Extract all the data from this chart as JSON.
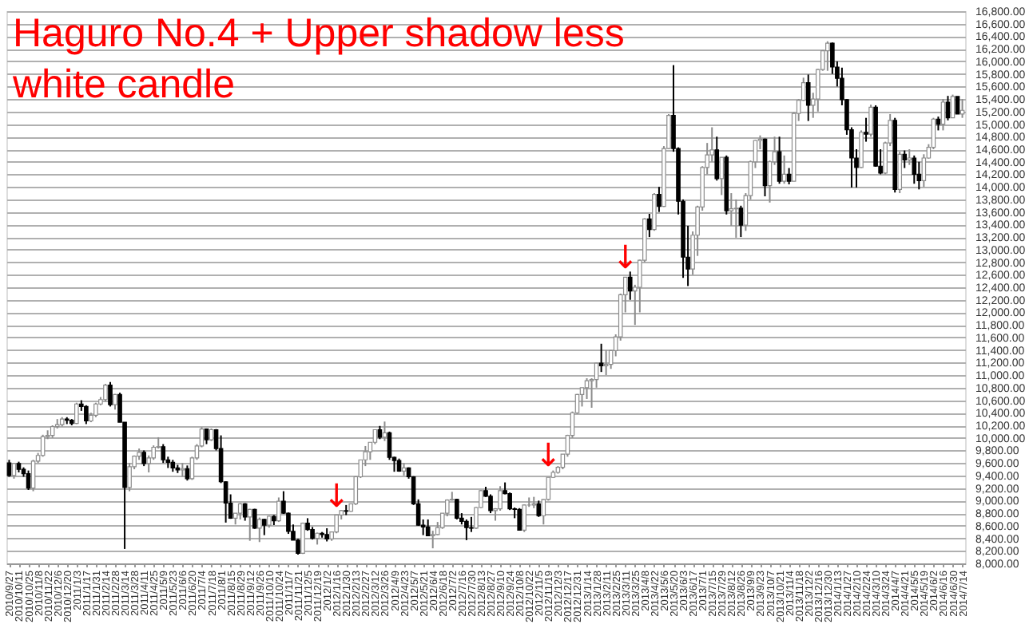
{
  "chart_data": {
    "type": "candlestick",
    "title": "Haguro No.4 + Upper shadow less white candle",
    "x": [
      "2010-09-27",
      "2010-10-04",
      "2010-10-11",
      "2010-10-18",
      "2010-10-25",
      "2010-11-01",
      "2010-11-08",
      "2010-11-15",
      "2010-11-22",
      "2010-11-29",
      "2010-12-06",
      "2010-12-13",
      "2010-12-20",
      "2010-12-27",
      "2011-01-03",
      "2011-01-10",
      "2011-01-17",
      "2011-01-24",
      "2011-01-31",
      "2011-02-07",
      "2011-02-14",
      "2011-02-21",
      "2011-02-28",
      "2011-03-07",
      "2011-03-14",
      "2011-03-21",
      "2011-03-28",
      "2011-04-04",
      "2011-04-11",
      "2011-04-18",
      "2011-04-25",
      "2011-05-02",
      "2011-05-09",
      "2011-05-16",
      "2011-05-23",
      "2011-05-30",
      "2011-06-06",
      "2011-06-13",
      "2011-06-20",
      "2011-06-27",
      "2011-07-04",
      "2011-07-11",
      "2011-07-18",
      "2011-07-25",
      "2011-08-01",
      "2011-08-08",
      "2011-08-15",
      "2011-08-22",
      "2011-08-29",
      "2011-09-05",
      "2011-09-12",
      "2011-09-19",
      "2011-09-26",
      "2011-10-03",
      "2011-10-10",
      "2011-10-17",
      "2011-10-24",
      "2011-10-31",
      "2011-11-07",
      "2011-11-14",
      "2011-11-21",
      "2011-11-28",
      "2011-12-05",
      "2011-12-12",
      "2011-12-19",
      "2011-12-26",
      "2012-01-02",
      "2012-01-09",
      "2012-01-16",
      "2012-01-23",
      "2012-01-30",
      "2012-02-06",
      "2012-02-13",
      "2012-02-20",
      "2012-02-27",
      "2012-03-05",
      "2012-03-12",
      "2012-03-19",
      "2012-03-26",
      "2012-04-02",
      "2012-04-09",
      "2012-04-16",
      "2012-04-23",
      "2012-04-30",
      "2012-05-07",
      "2012-05-14",
      "2012-05-21",
      "2012-05-28",
      "2012-06-04",
      "2012-06-11",
      "2012-06-18",
      "2012-06-25",
      "2012-07-02",
      "2012-07-09",
      "2012-07-16",
      "2012-07-23",
      "2012-07-30",
      "2012-08-06",
      "2012-08-13",
      "2012-08-20",
      "2012-08-27",
      "2012-09-03",
      "2012-09-10",
      "2012-09-17",
      "2012-09-24",
      "2012-10-01",
      "2012-10-08",
      "2012-10-15",
      "2012-10-22",
      "2012-10-29",
      "2012-11-05",
      "2012-11-12",
      "2012-11-19",
      "2012-11-26",
      "2012-12-03",
      "2012-12-10",
      "2012-12-17",
      "2012-12-24",
      "2012-12-31",
      "2013-01-07",
      "2013-01-14",
      "2013-01-21",
      "2013-01-28",
      "2013-02-04",
      "2013-02-11",
      "2013-02-18",
      "2013-02-25",
      "2013-03-04",
      "2013-03-11",
      "2013-03-18",
      "2013-03-25",
      "2013-04-01",
      "2013-04-08",
      "2013-04-15",
      "2013-04-22",
      "2013-04-29",
      "2013-05-06",
      "2013-05-13",
      "2013-05-20",
      "2013-05-27",
      "2013-06-03",
      "2013-06-10",
      "2013-06-17",
      "2013-06-24",
      "2013-07-01",
      "2013-07-08",
      "2013-07-15",
      "2013-07-22",
      "2013-07-29",
      "2013-08-05",
      "2013-08-12",
      "2013-08-19",
      "2013-08-26",
      "2013-09-02",
      "2013-09-09",
      "2013-09-16",
      "2013-09-23",
      "2013-09-30",
      "2013-10-07",
      "2013-10-14",
      "2013-10-21",
      "2013-10-28",
      "2013-11-04",
      "2013-11-11",
      "2013-11-18",
      "2013-11-25",
      "2013-12-02",
      "2013-12-09",
      "2013-12-16",
      "2013-12-23",
      "2013-12-30",
      "2014-01-06",
      "2014-01-13",
      "2014-01-20",
      "2014-01-27",
      "2014-02-03",
      "2014-02-10",
      "2014-02-17",
      "2014-02-24",
      "2014-03-03",
      "2014-03-10",
      "2014-03-17",
      "2014-03-24",
      "2014-03-31",
      "2014-04-07",
      "2014-04-14",
      "2014-04-21",
      "2014-04-28",
      "2014-05-05",
      "2014-05-12",
      "2014-05-19",
      "2014-05-26",
      "2014-06-02",
      "2014-06-09",
      "2014-06-16",
      "2014-06-23",
      "2014-06-30",
      "2014-07-07",
      "2014-07-14"
    ],
    "ohlc": [
      [
        9600,
        9650,
        9380,
        9400
      ],
      [
        9400,
        9600,
        9350,
        9590
      ],
      [
        9590,
        9620,
        9450,
        9500
      ],
      [
        9500,
        9530,
        9380,
        9430
      ],
      [
        9430,
        9480,
        9170,
        9200
      ],
      [
        9200,
        9650,
        9150,
        9630
      ],
      [
        9630,
        9760,
        9600,
        9720
      ],
      [
        9720,
        10050,
        9700,
        10020
      ],
      [
        10020,
        10120,
        9980,
        10040
      ],
      [
        10040,
        10200,
        10000,
        10180
      ],
      [
        10180,
        10300,
        10150,
        10210
      ],
      [
        10210,
        10330,
        10180,
        10300
      ],
      [
        10300,
        10330,
        10220,
        10280
      ],
      [
        10280,
        10300,
        10200,
        10230
      ],
      [
        10230,
        10560,
        10220,
        10540
      ],
      [
        10540,
        10600,
        10430,
        10500
      ],
      [
        10500,
        10520,
        10220,
        10270
      ],
      [
        10270,
        10400,
        10250,
        10360
      ],
      [
        10360,
        10560,
        10330,
        10540
      ],
      [
        10540,
        10650,
        10520,
        10610
      ],
      [
        10610,
        10860,
        10580,
        10840
      ],
      [
        10840,
        10890,
        10500,
        10530
      ],
      [
        10530,
        10700,
        10450,
        10690
      ],
      [
        10690,
        10720,
        10250,
        10250
      ],
      [
        10250,
        10250,
        8230,
        9210
      ],
      [
        9210,
        9600,
        9150,
        9540
      ],
      [
        9540,
        9720,
        9500,
        9710
      ],
      [
        9710,
        9830,
        9650,
        9770
      ],
      [
        9770,
        9800,
        9550,
        9590
      ],
      [
        9590,
        9720,
        9450,
        9680
      ],
      [
        9680,
        9880,
        9650,
        9850
      ],
      [
        9850,
        10010,
        9830,
        9860
      ],
      [
        9860,
        9900,
        9600,
        9650
      ],
      [
        9650,
        9700,
        9520,
        9610
      ],
      [
        9610,
        9650,
        9460,
        9520
      ],
      [
        9520,
        9570,
        9440,
        9490
      ],
      [
        9490,
        9600,
        9380,
        9510
      ],
      [
        9510,
        9560,
        9320,
        9350
      ],
      [
        9350,
        9700,
        9330,
        9680
      ],
      [
        9680,
        9900,
        9650,
        9870
      ],
      [
        9870,
        10170,
        9850,
        10140
      ],
      [
        10140,
        10150,
        9900,
        9970
      ],
      [
        9970,
        10150,
        9950,
        10130
      ],
      [
        10130,
        10140,
        9800,
        9830
      ],
      [
        9830,
        10040,
        9280,
        9300
      ],
      [
        9300,
        9310,
        8650,
        8960
      ],
      [
        8960,
        9100,
        8710,
        8720
      ],
      [
        8720,
        8800,
        8620,
        8800
      ],
      [
        8800,
        8960,
        8700,
        8950
      ],
      [
        8950,
        8960,
        8680,
        8740
      ],
      [
        8740,
        8870,
        8360,
        8860
      ],
      [
        8860,
        8870,
        8550,
        8560
      ],
      [
        8560,
        8730,
        8340,
        8700
      ],
      [
        8700,
        8710,
        8450,
        8610
      ],
      [
        8610,
        8760,
        8570,
        8750
      ],
      [
        8750,
        8770,
        8610,
        8680
      ],
      [
        8680,
        9050,
        8660,
        8990
      ],
      [
        8990,
        9150,
        8790,
        8800
      ],
      [
        8800,
        8810,
        8470,
        8510
      ],
      [
        8510,
        8620,
        8370,
        8370
      ],
      [
        8370,
        8390,
        8140,
        8160
      ],
      [
        8160,
        8650,
        8150,
        8640
      ],
      [
        8640,
        8720,
        8520,
        8540
      ],
      [
        8540,
        8580,
        8380,
        8400
      ],
      [
        8400,
        8490,
        8300,
        8480
      ],
      [
        8480,
        8500,
        8410,
        8460
      ],
      [
        8460,
        8560,
        8350,
        8390
      ],
      [
        8390,
        8500,
        8360,
        8500
      ],
      [
        8500,
        8770,
        8480,
        8770
      ],
      [
        8770,
        8850,
        8700,
        8840
      ],
      [
        8840,
        8930,
        8770,
        8830
      ],
      [
        8830,
        8950,
        8820,
        8950
      ],
      [
        8950,
        9390,
        8930,
        9380
      ],
      [
        9380,
        9650,
        9360,
        9650
      ],
      [
        9650,
        9870,
        9550,
        9780
      ],
      [
        9780,
        9930,
        9650,
        9930
      ],
      [
        9930,
        10130,
        9900,
        10130
      ],
      [
        10130,
        10190,
        9980,
        10010
      ],
      [
        10010,
        10260,
        9950,
        10080
      ],
      [
        10080,
        10100,
        9650,
        9690
      ],
      [
        9690,
        9700,
        9460,
        9640
      ],
      [
        9640,
        9670,
        9460,
        9470
      ],
      [
        9470,
        9600,
        9400,
        9520
      ],
      [
        9520,
        9530,
        9350,
        9380
      ],
      [
        9380,
        9390,
        8930,
        8950
      ],
      [
        8950,
        9020,
        8600,
        8610
      ],
      [
        8610,
        8700,
        8450,
        8580
      ],
      [
        8580,
        8700,
        8440,
        8440
      ],
      [
        8440,
        8520,
        8240,
        8460
      ],
      [
        8460,
        8660,
        8450,
        8570
      ],
      [
        8570,
        8800,
        8550,
        8800
      ],
      [
        8800,
        9020,
        8750,
        9010
      ],
      [
        9010,
        9140,
        9000,
        9020
      ],
      [
        9020,
        9030,
        8700,
        8720
      ],
      [
        8720,
        8800,
        8620,
        8670
      ],
      [
        8670,
        8700,
        8370,
        8570
      ],
      [
        8570,
        8740,
        8500,
        8560
      ],
      [
        8560,
        8900,
        8550,
        8890
      ],
      [
        8890,
        9170,
        8880,
        9160
      ],
      [
        9160,
        9220,
        9060,
        9070
      ],
      [
        9070,
        9100,
        8800,
        8840
      ],
      [
        8840,
        8880,
        8680,
        8870
      ],
      [
        8870,
        9230,
        8840,
        9160
      ],
      [
        9160,
        9290,
        9100,
        9110
      ],
      [
        9110,
        9130,
        8850,
        8870
      ],
      [
        8870,
        8890,
        8720,
        8860
      ],
      [
        8860,
        8880,
        8530,
        8530
      ],
      [
        8530,
        8940,
        8500,
        8930
      ],
      [
        8930,
        9050,
        8900,
        8930
      ],
      [
        8930,
        9060,
        8880,
        8950
      ],
      [
        8950,
        9000,
        8740,
        8760
      ],
      [
        8760,
        9030,
        8620,
        9020
      ],
      [
        9020,
        9370,
        9000,
        9370
      ],
      [
        9370,
        9480,
        9360,
        9450
      ],
      [
        9450,
        9550,
        9430,
        9530
      ],
      [
        9530,
        9740,
        9500,
        9740
      ],
      [
        9740,
        10050,
        9700,
        10040
      ],
      [
        10040,
        10420,
        10000,
        10400
      ],
      [
        10400,
        10700,
        10380,
        10690
      ],
      [
        10690,
        10800,
        10500,
        10800
      ],
      [
        10800,
        10950,
        10620,
        10910
      ],
      [
        10910,
        10950,
        10480,
        10930
      ],
      [
        10930,
        11200,
        10800,
        11190
      ],
      [
        11190,
        11500,
        11050,
        11150
      ],
      [
        11150,
        11400,
        11000,
        11170
      ],
      [
        11170,
        11400,
        11100,
        11390
      ],
      [
        11390,
        11650,
        11300,
        11610
      ],
      [
        11610,
        12300,
        11550,
        12280
      ],
      [
        12280,
        12560,
        12000,
        12560
      ],
      [
        12560,
        12650,
        12200,
        12340
      ],
      [
        12340,
        12440,
        11800,
        12400
      ],
      [
        12400,
        12840,
        12000,
        12830
      ],
      [
        12830,
        13500,
        12800,
        13490
      ],
      [
        13490,
        13570,
        13200,
        13320
      ],
      [
        13320,
        13900,
        13300,
        13880
      ],
      [
        13880,
        14000,
        13600,
        13690
      ],
      [
        13690,
        14650,
        13680,
        14610
      ],
      [
        14610,
        15160,
        14600,
        15140
      ],
      [
        15140,
        15940,
        14560,
        14610
      ],
      [
        14610,
        14630,
        13560,
        13770
      ],
      [
        13770,
        13800,
        12550,
        12880
      ],
      [
        12880,
        13380,
        12420,
        12690
      ],
      [
        12690,
        13290,
        12600,
        13230
      ],
      [
        13230,
        13700,
        12900,
        13680
      ],
      [
        13680,
        14330,
        13620,
        14310
      ],
      [
        14310,
        14700,
        14200,
        14510
      ],
      [
        14510,
        14950,
        14400,
        14590
      ],
      [
        14590,
        14800,
        14100,
        14130
      ],
      [
        14130,
        14470,
        13870,
        14470
      ],
      [
        14470,
        14500,
        13560,
        13620
      ],
      [
        13620,
        13900,
        13380,
        13650
      ],
      [
        13650,
        13800,
        13190,
        13660
      ],
      [
        13660,
        13700,
        13200,
        13390
      ],
      [
        13390,
        13900,
        13300,
        13860
      ],
      [
        13860,
        14420,
        13800,
        14400
      ],
      [
        14400,
        14750,
        14300,
        14740
      ],
      [
        14740,
        14820,
        14600,
        14760
      ],
      [
        14760,
        14770,
        13850,
        14020
      ],
      [
        14020,
        14420,
        13750,
        14400
      ],
      [
        14400,
        14800,
        14350,
        14560
      ],
      [
        14560,
        14800,
        14050,
        14090
      ],
      [
        14090,
        14500,
        14050,
        14200
      ],
      [
        14200,
        14300,
        14040,
        14090
      ],
      [
        14090,
        15190,
        14090,
        15170
      ],
      [
        15170,
        15400,
        15050,
        15380
      ],
      [
        15380,
        15740,
        15370,
        15660
      ],
      [
        15660,
        15790,
        15050,
        15300
      ],
      [
        15300,
        15500,
        15100,
        15400
      ],
      [
        15400,
        15880,
        15200,
        15870
      ],
      [
        15870,
        16180,
        15850,
        16170
      ],
      [
        16170,
        16320,
        15850,
        16290
      ],
      [
        16290,
        16300,
        15800,
        15910
      ],
      [
        15910,
        16000,
        15600,
        15730
      ],
      [
        15730,
        15900,
        15300,
        15390
      ],
      [
        15390,
        15400,
        14830,
        14910
      ],
      [
        14910,
        14950,
        13990,
        14460
      ],
      [
        14460,
        14600,
        13990,
        14310
      ],
      [
        14310,
        14900,
        14300,
        14870
      ],
      [
        14870,
        15100,
        14720,
        14840
      ],
      [
        14840,
        15310,
        14800,
        15270
      ],
      [
        15270,
        15300,
        14320,
        14330
      ],
      [
        14330,
        14600,
        14200,
        14220
      ],
      [
        14220,
        14720,
        14200,
        14700
      ],
      [
        14700,
        15160,
        14650,
        15060
      ],
      [
        15060,
        15100,
        13910,
        13960
      ],
      [
        13960,
        14560,
        13900,
        14520
      ],
      [
        14520,
        14580,
        14300,
        14430
      ],
      [
        14430,
        14600,
        14350,
        14460
      ],
      [
        14460,
        14500,
        14050,
        14200
      ],
      [
        14200,
        14400,
        13960,
        14100
      ],
      [
        14100,
        14520,
        14000,
        14460
      ],
      [
        14460,
        14680,
        14450,
        14630
      ],
      [
        14630,
        15100,
        14600,
        15080
      ],
      [
        15080,
        15120,
        14900,
        15000
      ],
      [
        15000,
        15400,
        14900,
        15350
      ],
      [
        15350,
        15450,
        15060,
        15100
      ],
      [
        15100,
        15470,
        15100,
        15440
      ],
      [
        15440,
        15440,
        15160,
        15160
      ],
      [
        15160,
        15400,
        15100,
        15220
      ]
    ],
    "xlim": [
      "2010-09-23",
      "2014-07-18"
    ],
    "xticks": [
      {
        "value": "2010-09-27",
        "label": "2010/9/27"
      },
      {
        "value": "2010-10-11",
        "label": "2010/10/11"
      },
      {
        "value": "2010-10-25",
        "label": "2010/10/25"
      },
      {
        "value": "2010-11-08",
        "label": "2010/11/8"
      },
      {
        "value": "2010-11-22",
        "label": "2010/11/22"
      },
      {
        "value": "2010-12-06",
        "label": "2010/12/6"
      },
      {
        "value": "2010-12-20",
        "label": "2010/12/20"
      },
      {
        "value": "2011-01-03",
        "label": "2011/1/3"
      },
      {
        "value": "2011-01-17",
        "label": "2011/1/17"
      },
      {
        "value": "2011-01-31",
        "label": "2011/1/31"
      },
      {
        "value": "2011-02-14",
        "label": "2011/2/14"
      },
      {
        "value": "2011-02-28",
        "label": "2011/2/28"
      },
      {
        "value": "2011-03-14",
        "label": "2011/3/14"
      },
      {
        "value": "2011-03-28",
        "label": "2011/3/28"
      },
      {
        "value": "2011-04-11",
        "label": "2011/4/11"
      },
      {
        "value": "2011-04-25",
        "label": "2011/4/25"
      },
      {
        "value": "2011-05-09",
        "label": "2011/5/9"
      },
      {
        "value": "2011-05-23",
        "label": "2011/5/23"
      },
      {
        "value": "2011-06-06",
        "label": "2011/6/6"
      },
      {
        "value": "2011-06-20",
        "label": "2011/6/20"
      },
      {
        "value": "2011-07-04",
        "label": "2011/7/4"
      },
      {
        "value": "2011-07-18",
        "label": "2011/7/18"
      },
      {
        "value": "2011-08-01",
        "label": "2011/8/1"
      },
      {
        "value": "2011-08-15",
        "label": "2011/8/15"
      },
      {
        "value": "2011-08-29",
        "label": "2011/8/29"
      },
      {
        "value": "2011-09-12",
        "label": "2011/9/12"
      },
      {
        "value": "2011-09-26",
        "label": "2011/9/26"
      },
      {
        "value": "2011-10-10",
        "label": "2011/10/10"
      },
      {
        "value": "2011-10-24",
        "label": "2011/10/24"
      },
      {
        "value": "2011-11-07",
        "label": "2011/11/7"
      },
      {
        "value": "2011-11-21",
        "label": "2011/11/21"
      },
      {
        "value": "2011-12-05",
        "label": "2011/12/5"
      },
      {
        "value": "2011-12-19",
        "label": "2011/12/19"
      },
      {
        "value": "2012-01-02",
        "label": "2012/1/2"
      },
      {
        "value": "2012-01-16",
        "label": "2012/1/16"
      },
      {
        "value": "2012-01-30",
        "label": "2012/1/30"
      },
      {
        "value": "2012-02-13",
        "label": "2012/2/13"
      },
      {
        "value": "2012-02-27",
        "label": "2012/2/27"
      },
      {
        "value": "2012-03-12",
        "label": "2012/3/12"
      },
      {
        "value": "2012-03-26",
        "label": "2012/3/26"
      },
      {
        "value": "2012-04-09",
        "label": "2012/4/9"
      },
      {
        "value": "2012-04-23",
        "label": "2012/4/23"
      },
      {
        "value": "2012-05-07",
        "label": "2012/5/7"
      },
      {
        "value": "2012-05-21",
        "label": "2012/5/21"
      },
      {
        "value": "2012-06-04",
        "label": "2012/6/4"
      },
      {
        "value": "2012-06-18",
        "label": "2012/6/18"
      },
      {
        "value": "2012-07-02",
        "label": "2012/7/2"
      },
      {
        "value": "2012-07-16",
        "label": "2012/7/16"
      },
      {
        "value": "2012-07-30",
        "label": "2012/7/30"
      },
      {
        "value": "2012-08-13",
        "label": "2012/8/13"
      },
      {
        "value": "2012-08-27",
        "label": "2012/8/27"
      },
      {
        "value": "2012-09-10",
        "label": "2012/9/10"
      },
      {
        "value": "2012-09-24",
        "label": "2012/9/24"
      },
      {
        "value": "2012-10-08",
        "label": "2012/10/8"
      },
      {
        "value": "2012-10-22",
        "label": "2012/10/22"
      },
      {
        "value": "2012-11-05",
        "label": "2012/11/5"
      },
      {
        "value": "2012-11-19",
        "label": "2012/11/19"
      },
      {
        "value": "2012-12-03",
        "label": "2012/12/3"
      },
      {
        "value": "2012-12-17",
        "label": "2012/12/17"
      },
      {
        "value": "2012-12-31",
        "label": "2012/12/31"
      },
      {
        "value": "2013-01-14",
        "label": "2013/1/14"
      },
      {
        "value": "2013-01-28",
        "label": "2013/1/28"
      },
      {
        "value": "2013-02-11",
        "label": "2013/2/11"
      },
      {
        "value": "2013-02-25",
        "label": "2013/2/25"
      },
      {
        "value": "2013-03-11",
        "label": "2013/3/11"
      },
      {
        "value": "2013-03-25",
        "label": "2013/3/25"
      },
      {
        "value": "2013-04-08",
        "label": "2013/4/8"
      },
      {
        "value": "2013-04-22",
        "label": "2013/4/22"
      },
      {
        "value": "2013-05-06",
        "label": "2013/5/6"
      },
      {
        "value": "2013-05-20",
        "label": "2013/5/20"
      },
      {
        "value": "2013-06-03",
        "label": "2013/6/3"
      },
      {
        "value": "2013-06-17",
        "label": "2013/6/17"
      },
      {
        "value": "2013-07-01",
        "label": "2013/7/1"
      },
      {
        "value": "2013-07-15",
        "label": "2013/7/15"
      },
      {
        "value": "2013-07-29",
        "label": "2013/7/29"
      },
      {
        "value": "2013-08-12",
        "label": "2013/8/12"
      },
      {
        "value": "2013-08-26",
        "label": "2013/8/26"
      },
      {
        "value": "2013-09-09",
        "label": "2013/9/9"
      },
      {
        "value": "2013-09-23",
        "label": "2013/9/23"
      },
      {
        "value": "2013-10-07",
        "label": "2013/10/7"
      },
      {
        "value": "2013-10-21",
        "label": "2013/10/21"
      },
      {
        "value": "2013-11-04",
        "label": "2013/11/4"
      },
      {
        "value": "2013-11-18",
        "label": "2013/11/18"
      },
      {
        "value": "2013-12-02",
        "label": "2013/12/2"
      },
      {
        "value": "2013-12-16",
        "label": "2013/12/16"
      },
      {
        "value": "2013-12-30",
        "label": "2013/12/30"
      },
      {
        "value": "2014-01-13",
        "label": "2014/1/13"
      },
      {
        "value": "2014-01-27",
        "label": "2014/1/27"
      },
      {
        "value": "2014-02-10",
        "label": "2014/2/10"
      },
      {
        "value": "2014-02-24",
        "label": "2014/2/24"
      },
      {
        "value": "2014-03-10",
        "label": "2014/3/10"
      },
      {
        "value": "2014-03-24",
        "label": "2014/3/24"
      },
      {
        "value": "2014-04-07",
        "label": "2014/4/7"
      },
      {
        "value": "2014-04-21",
        "label": "2014/4/21"
      },
      {
        "value": "2014-05-05",
        "label": "2014/5/5"
      },
      {
        "value": "2014-05-19",
        "label": "2014/5/19"
      },
      {
        "value": "2014-06-02",
        "label": "2014/6/2"
      },
      {
        "value": "2014-06-16",
        "label": "2014/6/16"
      },
      {
        "value": "2014-06-30",
        "label": "2014/6/30"
      },
      {
        "value": "2014-07-14",
        "label": "2014/7/14"
      }
    ],
    "ylim": [
      8000,
      16800
    ],
    "yticks": [
      {
        "value": 8000,
        "label": "8,000.00"
      },
      {
        "value": 8200,
        "label": "8,200.00"
      },
      {
        "value": 8400,
        "label": "8,400.00"
      },
      {
        "value": 8600,
        "label": "8,600.00"
      },
      {
        "value": 8800,
        "label": "8,800.00"
      },
      {
        "value": 9000,
        "label": "9,000.00"
      },
      {
        "value": 9200,
        "label": "9,200.00"
      },
      {
        "value": 9400,
        "label": "9,400.00"
      },
      {
        "value": 9600,
        "label": "9,600.00"
      },
      {
        "value": 9800,
        "label": "9,800.00"
      },
      {
        "value": 10000,
        "label": "10,000.00"
      },
      {
        "value": 10200,
        "label": "10,200.00"
      },
      {
        "value": 10400,
        "label": "10,400.00"
      },
      {
        "value": 10600,
        "label": "10,600.00"
      },
      {
        "value": 10800,
        "label": "10,800.00"
      },
      {
        "value": 11000,
        "label": "11,000.00"
      },
      {
        "value": 11200,
        "label": "11,200.00"
      },
      {
        "value": 11400,
        "label": "11,400.00"
      },
      {
        "value": 11600,
        "label": "11,600.00"
      },
      {
        "value": 11800,
        "label": "11,800.00"
      },
      {
        "value": 12000,
        "label": "12,000.00"
      },
      {
        "value": 12200,
        "label": "12,200.00"
      },
      {
        "value": 12400,
        "label": "12,400.00"
      },
      {
        "value": 12600,
        "label": "12,600.00"
      },
      {
        "value": 12800,
        "label": "12,800.00"
      },
      {
        "value": 13000,
        "label": "13,000.00"
      },
      {
        "value": 13200,
        "label": "13,200.00"
      },
      {
        "value": 13400,
        "label": "13,400.00"
      },
      {
        "value": 13600,
        "label": "13,600.00"
      },
      {
        "value": 13800,
        "label": "13,800.00"
      },
      {
        "value": 14000,
        "label": "14,000.00"
      },
      {
        "value": 14200,
        "label": "14,200.00"
      },
      {
        "value": 14400,
        "label": "14,400.00"
      },
      {
        "value": 14600,
        "label": "14,600.00"
      },
      {
        "value": 14800,
        "label": "14,800.00"
      },
      {
        "value": 15000,
        "label": "15,000.00"
      },
      {
        "value": 15200,
        "label": "15,200.00"
      },
      {
        "value": 15400,
        "label": "15,400.00"
      },
      {
        "value": 15600,
        "label": "15,600.00"
      },
      {
        "value": 15800,
        "label": "15,800.00"
      },
      {
        "value": 16000,
        "label": "16,000.00"
      },
      {
        "value": 16200,
        "label": "16,200.00"
      },
      {
        "value": 16400,
        "label": "16,400.00"
      },
      {
        "value": 16600,
        "label": "16,600.00"
      },
      {
        "value": 16800,
        "label": "16,800.00"
      }
    ],
    "grid": "y",
    "annotations": [
      {
        "text": "↓",
        "x": "2012-01-16",
        "y": 8880
      },
      {
        "text": "↓",
        "x": "2012-11-19",
        "y": 9530
      },
      {
        "text": "↓",
        "x": "2013-03-11",
        "y": 12680
      }
    ]
  }
}
